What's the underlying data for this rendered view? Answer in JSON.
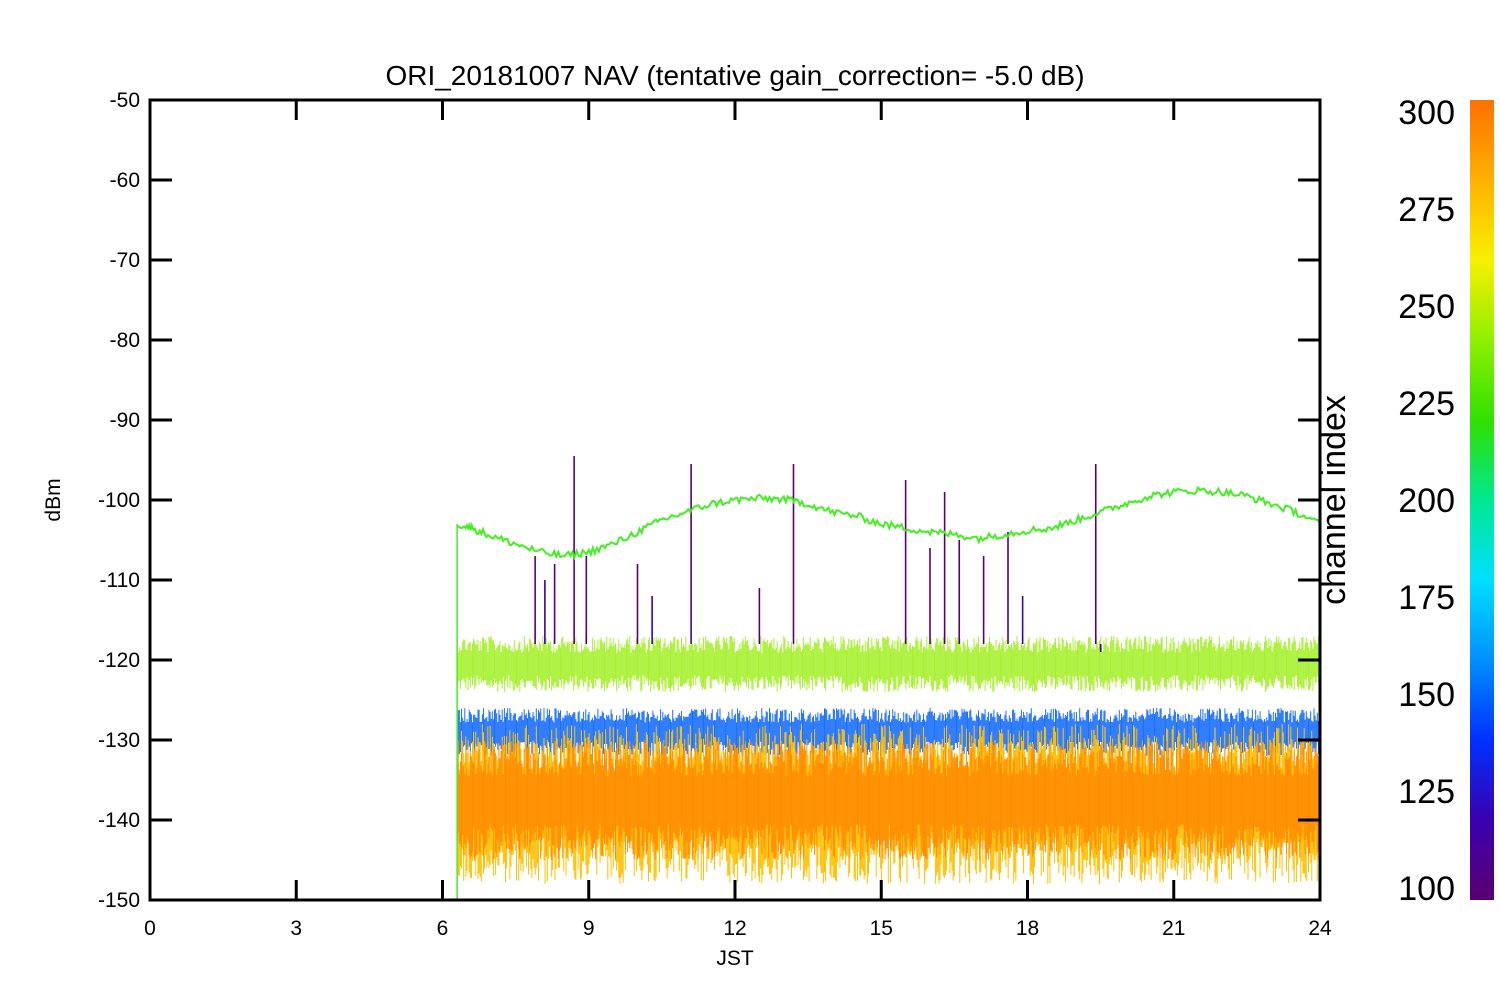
{
  "chart_data": {
    "type": "line",
    "title": "ORI_20181007 NAV (tentative gain_correction= -5.0 dB)",
    "xlabel": "JST",
    "ylabel": "dBm",
    "xlim": [
      0,
      24
    ],
    "ylim": [
      -150,
      -50
    ],
    "x_ticks": [
      "0",
      "3",
      "6",
      "9",
      "12",
      "15",
      "18",
      "21",
      "24"
    ],
    "y_ticks": [
      "-50",
      "-60",
      "-70",
      "-80",
      "-90",
      "-100",
      "-110",
      "-120",
      "-130",
      "-140",
      "-150"
    ],
    "grid": false,
    "colorbar": {
      "label": "channel index",
      "range": [
        100,
        300
      ],
      "ticks": [
        "300",
        "275",
        "250",
        "225",
        "200",
        "175",
        "150",
        "125",
        "100"
      ],
      "colormap": [
        "#5a0070",
        "#3a00b0",
        "#0030ff",
        "#0090ff",
        "#00e0ff",
        "#00e890",
        "#30e000",
        "#90f000",
        "#f8f000",
        "#ffb000",
        "#ff7000"
      ]
    },
    "series": [
      {
        "channel": 240,
        "color": "#44ee22",
        "x": [
          6.3,
          6.6,
          7.0,
          7.5,
          8.0,
          8.5,
          9.0,
          9.5,
          10.0,
          10.5,
          11.0,
          11.5,
          12.0,
          12.5,
          13.0,
          13.5,
          14.0,
          14.5,
          15.0,
          15.5,
          16.0,
          16.5,
          17.0,
          17.5,
          18.0,
          18.5,
          19.0,
          19.5,
          20.0,
          20.5,
          21.0,
          21.5,
          22.0,
          22.5,
          23.0,
          23.5,
          24.0
        ],
        "y": [
          -103,
          -103.5,
          -104.5,
          -105.5,
          -106.5,
          -107,
          -106.5,
          -105.5,
          -104,
          -102.5,
          -101.5,
          -100.5,
          -100,
          -99.8,
          -99.9,
          -100.5,
          -101.5,
          -102,
          -103,
          -103.5,
          -104,
          -104.3,
          -104.8,
          -104.3,
          -103.8,
          -103.5,
          -102.5,
          -101.5,
          -100.5,
          -99.5,
          -99,
          -98.8,
          -99,
          -99.5,
          -100.5,
          -101.5,
          -103
        ]
      },
      {
        "channel": 265,
        "color": "#a8f030",
        "band": true,
        "x": [
          6.3,
          24
        ],
        "y_low": [
          -124,
          -124
        ],
        "y_high": [
          -117,
          -117
        ]
      },
      {
        "channel": 150,
        "color": "#1a70ff",
        "band": true,
        "x": [
          6.3,
          24
        ],
        "y_low": [
          -132,
          -132
        ],
        "y_high": [
          -126,
          -126
        ]
      },
      {
        "channel": 285,
        "color": "#ffc000",
        "band": true,
        "x": [
          6.3,
          24
        ],
        "y_low": [
          -148,
          -148
        ],
        "y_high": [
          -128,
          -128
        ]
      },
      {
        "channel": 300,
        "color": "#ff8c00",
        "band": true,
        "x": [
          6.3,
          24
        ],
        "y_low": [
          -145,
          -145
        ],
        "y_high": [
          -130,
          -130
        ]
      }
    ],
    "spikes": [
      {
        "x": 7.9,
        "y": -107,
        "channel": 100
      },
      {
        "x": 8.1,
        "y": -110,
        "channel": 110
      },
      {
        "x": 8.3,
        "y": -108,
        "channel": 100
      },
      {
        "x": 8.7,
        "y": -94.5,
        "channel": 100
      },
      {
        "x": 8.95,
        "y": -107,
        "channel": 100
      },
      {
        "x": 10.0,
        "y": -108,
        "channel": 100
      },
      {
        "x": 10.3,
        "y": -112,
        "channel": 110
      },
      {
        "x": 11.1,
        "y": -95.5,
        "channel": 100
      },
      {
        "x": 12.5,
        "y": -111,
        "channel": 100
      },
      {
        "x": 13.2,
        "y": -95.5,
        "channel": 100
      },
      {
        "x": 15.5,
        "y": -97.5,
        "channel": 100
      },
      {
        "x": 16.0,
        "y": -106,
        "channel": 100
      },
      {
        "x": 16.3,
        "y": -99,
        "channel": 100
      },
      {
        "x": 16.6,
        "y": -105,
        "channel": 100
      },
      {
        "x": 17.1,
        "y": -107,
        "channel": 100
      },
      {
        "x": 17.6,
        "y": -104,
        "channel": 100
      },
      {
        "x": 17.9,
        "y": -112,
        "channel": 110
      },
      {
        "x": 19.4,
        "y": -95.5,
        "channel": 100
      },
      {
        "x": 19.5,
        "y": -119,
        "channel": 120
      }
    ]
  }
}
